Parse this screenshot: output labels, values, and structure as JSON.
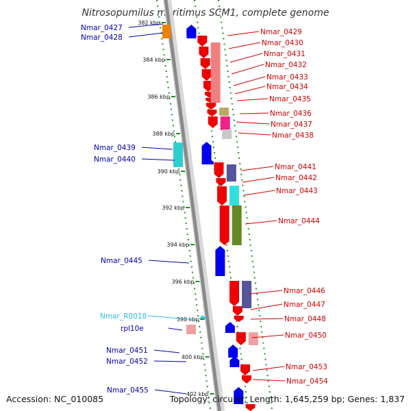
{
  "title": "Nitrosopumilus maritimus SCM1, complete genome",
  "footer": {
    "accession": "Accession: NC_010085",
    "topology": "Topology: circular; Length: 1,645,259 bp; Genes: 1,837"
  },
  "colors": {
    "background": "#ffffff",
    "backbone": "#8a8a8a",
    "dotted_track": "#1f8f1f",
    "reverse_strand_label": "#0000aa",
    "forward_strand_label": "#cc0000",
    "rna_label": "#33bbdd",
    "forward_gene": "#ee0000",
    "reverse_gene": "#0000ee",
    "rna_gene": "#33ccee"
  },
  "ruler_ticks": [
    "382 kbp",
    "384 kbp",
    "386 kbp",
    "388 kbp",
    "390 kbp",
    "392 kbp",
    "394 kbp",
    "396 kbp",
    "398 kbp",
    "400 kbp",
    "402 kbp"
  ],
  "reverse_labels": [
    "Nmar_0427",
    "Nmar_0428",
    "Nmar_0439",
    "Nmar_0440",
    "Nmar_0445",
    "Nmar_R0018",
    "rpl10e",
    "Nmar_0451",
    "Nmar_0452",
    "Nmar_0455"
  ],
  "forward_labels": [
    "Nmar_0429",
    "Nmar_0430",
    "Nmar_0431",
    "Nmar_0432",
    "Nmar_0433",
    "Nmar_0434",
    "Nmar_0435",
    "Nmar_0436",
    "Nmar_0437",
    "Nmar_0438",
    "Nmar_0441",
    "Nmar_0442",
    "Nmar_0443",
    "Nmar_0444",
    "Nmar_0446",
    "Nmar_0447",
    "Nmar_0448",
    "Nmar_0450",
    "Nmar_0453",
    "Nmar_0454"
  ],
  "gene_strand": {
    "Nmar_R0018": "rna"
  }
}
